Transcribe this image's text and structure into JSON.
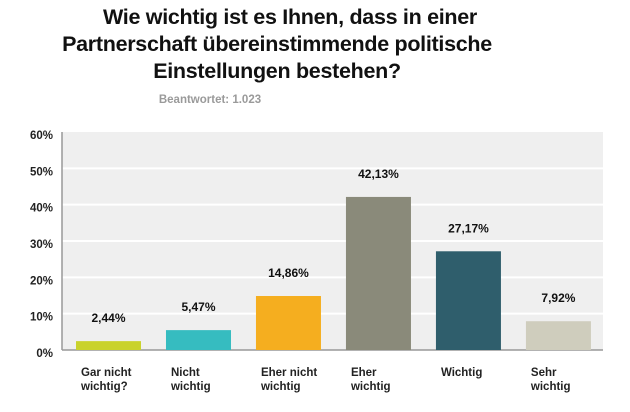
{
  "chart_data": {
    "type": "bar",
    "title": "Wie wichtig ist es Ihnen, dass in einer Partnerschaft übereinstimmende politische Einstellungen bestehen?",
    "title_lines": [
      "Wie wichtig ist es Ihnen, dass in einer",
      "Partnerschaft übereinstimmende politische",
      "Einstellungen bestehen?"
    ],
    "subtitle": "Beantwortet: 1.023",
    "categories": [
      [
        "Gar nicht",
        "wichtig?"
      ],
      [
        "Nicht",
        "wichtig"
      ],
      [
        "Eher nicht",
        "wichtig"
      ],
      [
        "Eher",
        "wichtig"
      ],
      [
        "Wichtig"
      ],
      [
        "Sehr",
        "wichtig"
      ]
    ],
    "values": [
      2.44,
      5.47,
      14.86,
      42.13,
      27.17,
      7.92
    ],
    "value_labels": [
      "2,44%",
      "5,47%",
      "14,86%",
      "42,13%",
      "27,17%",
      "7,92%"
    ],
    "colors": [
      "#c9d22c",
      "#36bcc0",
      "#f5ae1f",
      "#8a8a7a",
      "#2f5e6c",
      "#cfcdbd"
    ],
    "ylim": [
      0,
      60
    ],
    "yticks": [
      "0%",
      "10%",
      "20%",
      "30%",
      "40%",
      "50%",
      "60%"
    ],
    "grid": true,
    "background": "#efefef",
    "xlabel": "",
    "ylabel": ""
  }
}
